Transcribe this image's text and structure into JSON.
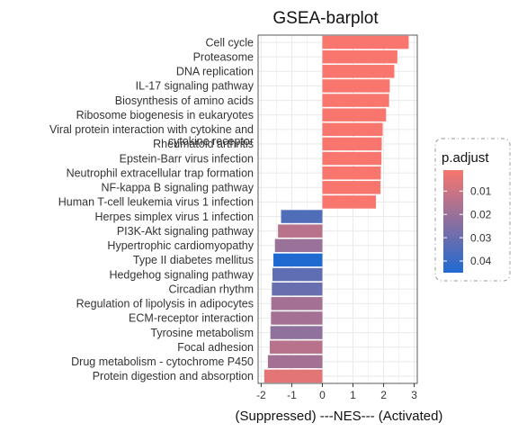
{
  "chart_data": {
    "type": "bar",
    "orientation": "horizontal",
    "title": "GSEA-barplot",
    "xlabel": "(Suppressed) ---NES--- (Activated)",
    "ylabel": "",
    "xlim": [
      -2.1,
      3.1
    ],
    "xticks": [
      -2,
      -1,
      0,
      1,
      2,
      3
    ],
    "xtick_labels": [
      "-2",
      "-1",
      "0",
      "1",
      "2",
      "3"
    ],
    "grid": true,
    "categories": [
      "Cell cycle",
      "Proteasome",
      "DNA replication",
      "IL-17 signaling pathway",
      "Biosynthesis of amino acids",
      "Ribosome biogenesis in eukaryotes",
      "Viral protein interaction with cytokine and cytokine receptor",
      "Rheumatoid arthritis",
      "Epstein-Barr virus infection",
      "Neutrophil extracellular trap formation",
      "NF-kappa B signaling pathway",
      "Human T-cell leukemia virus 1 infection",
      "Herpes simplex virus 1 infection",
      "PI3K-Akt signaling pathway",
      "Hypertrophic cardiomyopathy",
      "Type II diabetes mellitus",
      "Hedgehog signaling pathway",
      "Circadian rhythm",
      "Regulation of lipolysis in adipocytes",
      "ECM-receptor interaction",
      "Tyrosine metabolism",
      "Focal adhesion",
      "Drug metabolism - cytochrome P450",
      "Protein digestion and absorption"
    ],
    "category_lines": [
      [
        "Cell cycle"
      ],
      [
        "Proteasome"
      ],
      [
        "DNA replication"
      ],
      [
        "IL-17 signaling pathway"
      ],
      [
        "Biosynthesis of amino acids"
      ],
      [
        "Ribosome biogenesis in eukaryotes"
      ],
      [
        "Viral protein interaction with cytokine and",
        "cytokine receptor"
      ],
      [
        "Rheumatoid arthritis"
      ],
      [
        "Epstein-Barr virus infection"
      ],
      [
        "Neutrophil extracellular trap formation"
      ],
      [
        "NF-kappa B signaling pathway"
      ],
      [
        "Human T-cell leukemia virus 1 infection"
      ],
      [
        "Herpes simplex virus 1 infection"
      ],
      [
        "PI3K-Akt signaling pathway"
      ],
      [
        "Hypertrophic cardiomyopathy"
      ],
      [
        "Type II diabetes mellitus"
      ],
      [
        "Hedgehog signaling pathway"
      ],
      [
        "Circadian rhythm"
      ],
      [
        "Regulation of lipolysis in adipocytes"
      ],
      [
        "ECM-receptor interaction"
      ],
      [
        "Tyrosine metabolism"
      ],
      [
        "Focal adhesion"
      ],
      [
        "Drug metabolism - cytochrome P450"
      ],
      [
        "Protein digestion and absorption"
      ]
    ],
    "values": [
      2.82,
      2.45,
      2.35,
      2.2,
      2.18,
      2.08,
      1.97,
      1.94,
      1.93,
      1.91,
      1.9,
      1.75,
      -1.35,
      -1.45,
      -1.55,
      -1.6,
      -1.63,
      -1.65,
      -1.67,
      -1.68,
      -1.7,
      -1.72,
      -1.78,
      -1.9
    ],
    "p_adjust": [
      0.001,
      0.001,
      0.001,
      0.001,
      0.001,
      0.001,
      0.001,
      0.001,
      0.001,
      0.001,
      0.001,
      0.001,
      0.035,
      0.014,
      0.02,
      0.045,
      0.032,
      0.03,
      0.018,
      0.018,
      0.022,
      0.014,
      0.018,
      0.005
    ],
    "legend": {
      "title": "p.adjust",
      "placement": "right",
      "range": [
        0.001,
        0.045
      ],
      "ticks": [
        0.01,
        0.02,
        0.03,
        0.04
      ],
      "tick_labels": [
        "0.01",
        "0.02",
        "0.03",
        "0.04"
      ],
      "color_low": "#F8766D",
      "color_high": "#1F6AD1"
    },
    "panel_background": "#ffffff",
    "grid_color": "#ebebeb"
  }
}
